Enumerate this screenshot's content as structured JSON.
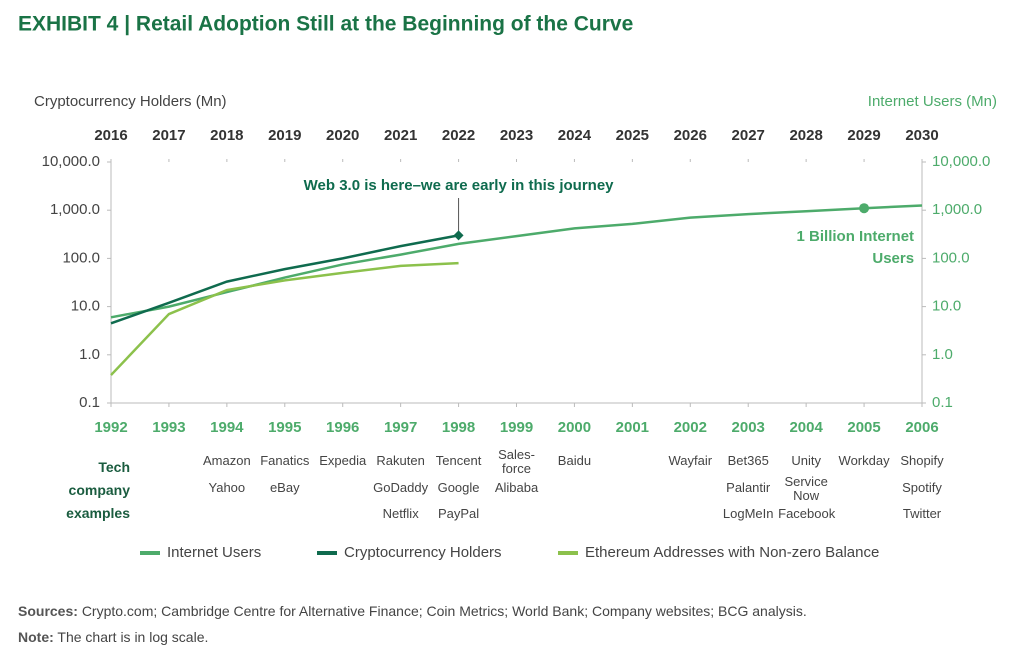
{
  "title": "EXHIBIT 4 | Retail Adoption Still at the Beginning of the Curve",
  "chart_data": {
    "type": "line",
    "log_scale": true,
    "ylabel": "Cryptocurrency Holders (Mn)",
    "y2label": "Internet Users (Mn)",
    "ylim": [
      0.1,
      10000
    ],
    "yticks": [
      {
        "value": 0.1,
        "label": "0.1"
      },
      {
        "value": 1,
        "label": "1.0"
      },
      {
        "value": 10,
        "label": "10.0"
      },
      {
        "value": 100,
        "label": "100.0"
      },
      {
        "value": 1000,
        "label": "1,000.0"
      },
      {
        "value": 10000,
        "label": "10,000.0"
      }
    ],
    "y2lim": [
      0.1,
      10000
    ],
    "y2ticks": [
      {
        "value": 0.1,
        "label": "0.1"
      },
      {
        "value": 1,
        "label": "1.0"
      },
      {
        "value": 10,
        "label": "10.0"
      },
      {
        "value": 100,
        "label": "100.0"
      },
      {
        "value": 1000,
        "label": "1,000.0"
      },
      {
        "value": 10000,
        "label": "10,000.0"
      }
    ],
    "xlim": [
      1992,
      2006
    ],
    "xticks": [
      1992,
      1993,
      1994,
      1995,
      1996,
      1997,
      1998,
      1999,
      2000,
      2001,
      2002,
      2003,
      2004,
      2005,
      2006
    ],
    "x2lim": [
      2016,
      2030
    ],
    "x2ticks": [
      2016,
      2017,
      2018,
      2019,
      2020,
      2021,
      2022,
      2023,
      2024,
      2025,
      2026,
      2027,
      2028,
      2029,
      2030
    ],
    "series": [
      {
        "name": "Internet Users",
        "color": "#4dab6b",
        "axis": "y2",
        "xaxis": "x",
        "x": [
          1992,
          1993,
          1994,
          1995,
          1996,
          1997,
          1998,
          1999,
          2000,
          2001,
          2002,
          2003,
          2004,
          2005,
          2006
        ],
        "values": [
          6,
          10,
          20,
          40,
          75,
          120,
          200,
          290,
          420,
          520,
          700,
          830,
          950,
          1100,
          1250
        ],
        "annotation": {
          "text": "1 Billion Internet Users",
          "at": 13,
          "marker": "circle"
        }
      },
      {
        "name": "Cryptocurrency Holders",
        "color": "#0f6b4e",
        "axis": "y",
        "xaxis": "x2",
        "x": [
          2016,
          2017,
          2018,
          2019,
          2020,
          2021,
          2022
        ],
        "values": [
          4.5,
          12,
          33,
          60,
          100,
          180,
          300
        ],
        "annotation": {
          "text": "Web 3.0 is here–we are early in this journey",
          "at": 6,
          "marker": "diamond"
        }
      },
      {
        "name": "Ethereum Addresses with Non-zero Balance",
        "color": "#8cc14c",
        "axis": "y",
        "xaxis": "x2",
        "x": [
          2016,
          2017,
          2018,
          2019,
          2020,
          2021,
          2022
        ],
        "values": [
          0.38,
          7,
          22,
          35,
          50,
          70,
          80
        ]
      }
    ]
  },
  "tech_examples": {
    "label": "Tech company examples",
    "columns": [
      [],
      [],
      [
        "Amazon",
        "Yahoo"
      ],
      [
        "Fanatics",
        "eBay"
      ],
      [
        "Expedia"
      ],
      [
        "Rakuten",
        "GoDaddy",
        "Netflix"
      ],
      [
        "Tencent",
        "Google",
        "PayPal"
      ],
      [
        "Sales-force",
        "Alibaba"
      ],
      [
        "Baidu"
      ],
      [],
      [
        "Wayfair"
      ],
      [
        "Bet365",
        "Palantir",
        "LogMeIn"
      ],
      [
        "Unity",
        "Service Now",
        "Facebook"
      ],
      [
        "Workday"
      ],
      [
        "Shopify",
        "Spotify",
        "Twitter"
      ]
    ]
  },
  "sources_label": "Sources:",
  "sources": "Crypto.com; Cambridge Centre for Alternative Finance; Coin Metrics; World Bank; Company websites; BCG analysis.",
  "note_label": "Note:",
  "note": "The chart is in log scale."
}
